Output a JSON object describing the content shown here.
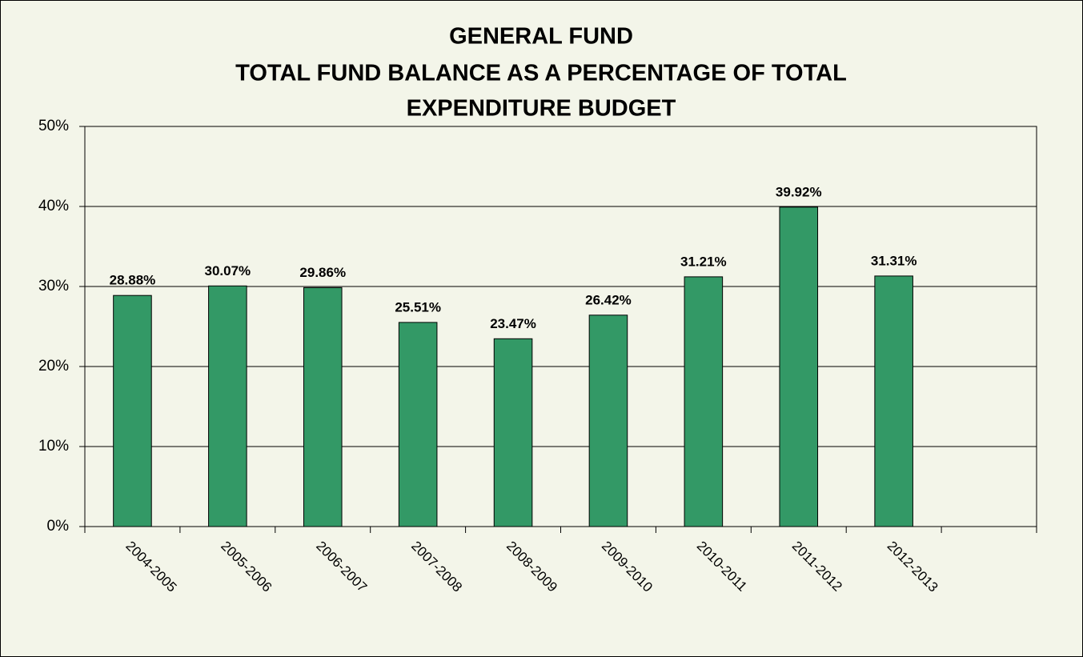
{
  "chart_data": {
    "type": "bar",
    "title": [
      "GENERAL FUND",
      "TOTAL FUND BALANCE AS A PERCENTAGE OF TOTAL",
      "EXPENDITURE  BUDGET"
    ],
    "categories": [
      "2004-2005",
      "2005-2006",
      "2006-2007",
      "2007-2008",
      "2008-2009",
      "2009-2010",
      "2010-2011",
      "2011-2012",
      "2012-2013",
      null
    ],
    "values": [
      28.88,
      30.07,
      29.86,
      25.51,
      23.47,
      26.42,
      31.21,
      39.92,
      31.31,
      null
    ],
    "value_labels": [
      "28.88%",
      "30.07%",
      "29.86%",
      "25.51%",
      "23.47%",
      "26.42%",
      "31.21%",
      "39.92%",
      "31.31%",
      null
    ],
    "color": "#339966",
    "ylim": [
      0,
      50
    ],
    "yticks": [
      {
        "value": 0,
        "label": "0%"
      },
      {
        "value": 10,
        "label": "10%"
      },
      {
        "value": 20,
        "label": "20%"
      },
      {
        "value": 30,
        "label": "30%"
      },
      {
        "value": 40,
        "label": "40%"
      },
      {
        "value": 50,
        "label": "50%"
      }
    ],
    "grid": true
  }
}
